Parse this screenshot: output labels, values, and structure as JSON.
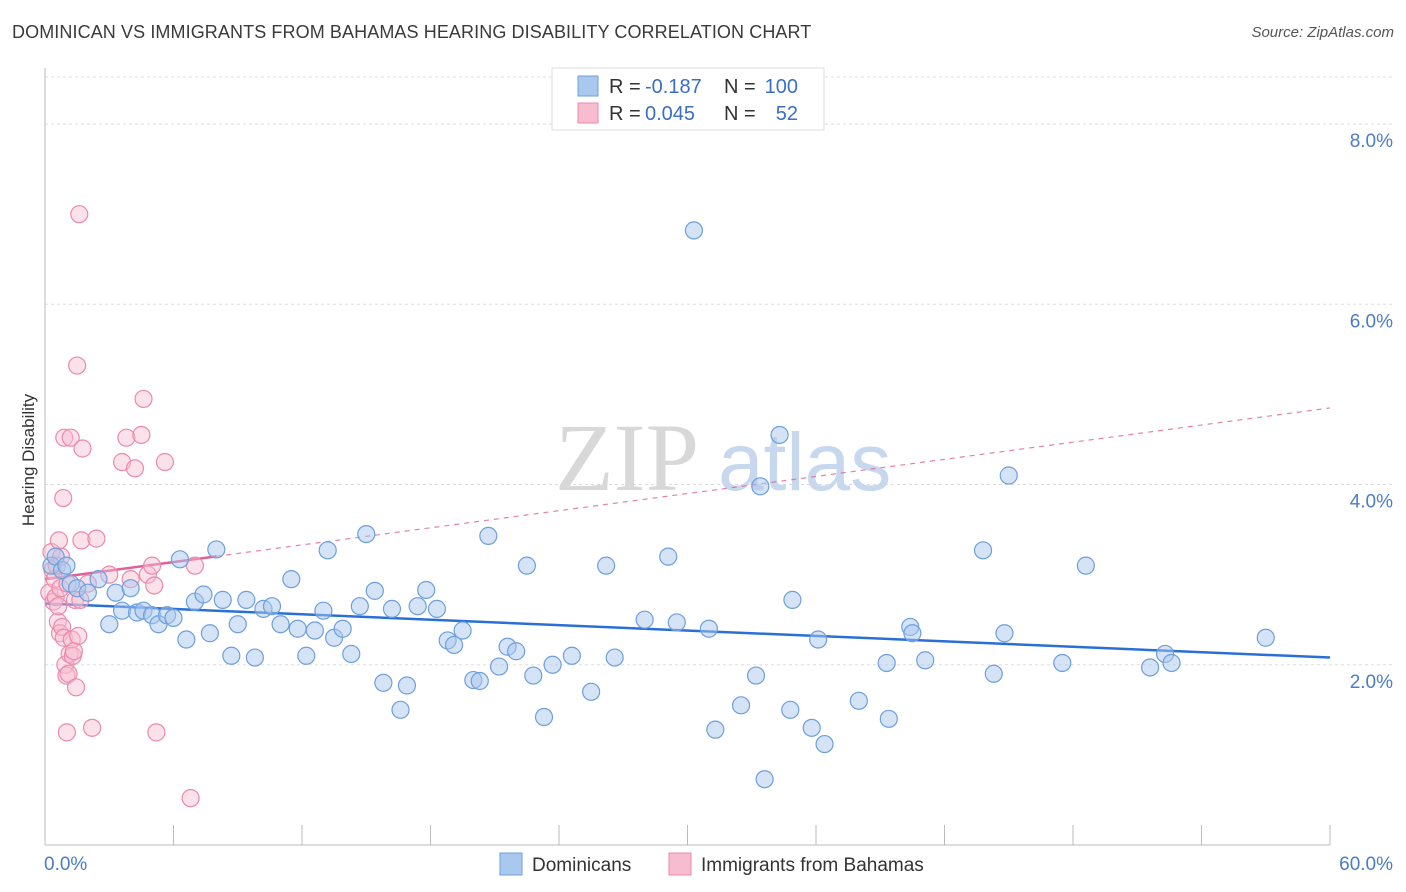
{
  "title": "DOMINICAN VS IMMIGRANTS FROM BAHAMAS HEARING DISABILITY CORRELATION CHART",
  "source": "Source: ZipAtlas.com",
  "watermark": {
    "zip": "ZIP",
    "atlas": "atlas"
  },
  "colors": {
    "blue_fill": "#a9c8ee",
    "blue_stroke": "#6e9fdc",
    "blue_line": "#2a6fd6",
    "pink_fill": "#f7bcd0",
    "pink_stroke": "#ec8aab",
    "pink_line": "#e0609a",
    "grid": "#dddddd",
    "axis_text": "#4a7cc7"
  },
  "chart_data": {
    "type": "scatter",
    "ylabel": "Hearing Disability",
    "xlim": [
      0,
      60
    ],
    "ylim": [
      0,
      8.6
    ],
    "x_tick_labels": {
      "min": "0.0%",
      "max": "60.0%"
    },
    "y_ticks": [
      {
        "value": 2,
        "label": "2.0%"
      },
      {
        "value": 4,
        "label": "4.0%"
      },
      {
        "value": 6,
        "label": "6.0%"
      },
      {
        "value": 8,
        "label": "8.0%"
      }
    ],
    "legend": [
      {
        "r_label": "R =",
        "r": "-0.187",
        "n_label": "N =",
        "n": "100"
      },
      {
        "r_label": "R =",
        "r": "0.045",
        "n_label": "N =",
        "n": "52"
      }
    ],
    "series": [
      {
        "name": "Dominicans",
        "trend": {
          "x0": 0,
          "y0": 2.68,
          "x1": 60,
          "y1": 2.08,
          "dashed_from": null
        },
        "points": [
          [
            0.3,
            3.1
          ],
          [
            0.5,
            3.2
          ],
          [
            0.8,
            3.05
          ],
          [
            1.0,
            3.1
          ],
          [
            1.2,
            2.9
          ],
          [
            1.5,
            2.85
          ],
          [
            2.0,
            2.8
          ],
          [
            2.5,
            2.95
          ],
          [
            3.0,
            2.45
          ],
          [
            3.3,
            2.8
          ],
          [
            3.6,
            2.6
          ],
          [
            4.0,
            2.85
          ],
          [
            4.3,
            2.58
          ],
          [
            4.6,
            2.6
          ],
          [
            5.0,
            2.55
          ],
          [
            5.3,
            2.45
          ],
          [
            5.7,
            2.55
          ],
          [
            6.0,
            2.52
          ],
          [
            6.3,
            3.17
          ],
          [
            6.6,
            2.28
          ],
          [
            7.0,
            2.7
          ],
          [
            7.4,
            2.78
          ],
          [
            7.7,
            2.35
          ],
          [
            8.0,
            3.28
          ],
          [
            8.3,
            2.72
          ],
          [
            8.7,
            2.1
          ],
          [
            9.0,
            2.45
          ],
          [
            9.4,
            2.72
          ],
          [
            9.8,
            2.08
          ],
          [
            10.2,
            2.62
          ],
          [
            10.6,
            2.65
          ],
          [
            11.0,
            2.45
          ],
          [
            11.5,
            2.95
          ],
          [
            11.8,
            2.4
          ],
          [
            12.2,
            2.1
          ],
          [
            12.6,
            2.38
          ],
          [
            13.0,
            2.6
          ],
          [
            13.2,
            3.27
          ],
          [
            13.5,
            2.3
          ],
          [
            13.9,
            2.4
          ],
          [
            14.3,
            2.12
          ],
          [
            14.7,
            2.65
          ],
          [
            15.0,
            3.45
          ],
          [
            15.4,
            2.82
          ],
          [
            15.8,
            1.8
          ],
          [
            16.2,
            2.62
          ],
          [
            16.6,
            1.5
          ],
          [
            16.9,
            1.77
          ],
          [
            17.4,
            2.65
          ],
          [
            17.8,
            2.83
          ],
          [
            18.3,
            2.62
          ],
          [
            18.8,
            2.27
          ],
          [
            19.1,
            2.22
          ],
          [
            19.5,
            2.38
          ],
          [
            20.0,
            1.83
          ],
          [
            20.3,
            1.82
          ],
          [
            20.7,
            3.43
          ],
          [
            21.2,
            1.98
          ],
          [
            21.6,
            2.2
          ],
          [
            22.0,
            2.15
          ],
          [
            22.5,
            3.1
          ],
          [
            22.8,
            1.88
          ],
          [
            23.3,
            1.42
          ],
          [
            23.7,
            2.0
          ],
          [
            24.6,
            2.1
          ],
          [
            25.5,
            1.7
          ],
          [
            26.2,
            3.1
          ],
          [
            26.6,
            2.08
          ],
          [
            28.0,
            2.5
          ],
          [
            29.1,
            3.2
          ],
          [
            29.5,
            2.47
          ],
          [
            30.3,
            6.82
          ],
          [
            31.0,
            2.4
          ],
          [
            31.3,
            1.28
          ],
          [
            32.5,
            1.55
          ],
          [
            33.2,
            1.88
          ],
          [
            33.6,
            0.73
          ],
          [
            33.4,
            3.98
          ],
          [
            34.3,
            4.55
          ],
          [
            34.8,
            1.5
          ],
          [
            34.9,
            2.72
          ],
          [
            35.8,
            1.3
          ],
          [
            36.1,
            2.28
          ],
          [
            36.4,
            1.12
          ],
          [
            38.0,
            1.6
          ],
          [
            39.3,
            2.02
          ],
          [
            39.4,
            1.4
          ],
          [
            40.4,
            2.42
          ],
          [
            40.5,
            2.35
          ],
          [
            41.1,
            2.05
          ],
          [
            43.8,
            3.27
          ],
          [
            44.3,
            1.9
          ],
          [
            44.8,
            2.35
          ],
          [
            45.0,
            4.1
          ],
          [
            47.5,
            2.02
          ],
          [
            48.6,
            3.1
          ],
          [
            51.6,
            1.97
          ],
          [
            52.3,
            2.12
          ],
          [
            52.6,
            2.02
          ],
          [
            57.0,
            2.3
          ]
        ]
      },
      {
        "name": "Immigrants from Bahamas",
        "trend": {
          "x0": 0,
          "y0": 2.95,
          "x1": 60,
          "y1": 4.85,
          "solid_until": 8.0
        },
        "points": [
          [
            0.2,
            2.8
          ],
          [
            0.3,
            3.25
          ],
          [
            0.35,
            3.05
          ],
          [
            0.4,
            2.7
          ],
          [
            0.45,
            2.95
          ],
          [
            0.5,
            2.75
          ],
          [
            0.55,
            3.1
          ],
          [
            0.6,
            2.48
          ],
          [
            0.62,
            2.65
          ],
          [
            0.65,
            3.38
          ],
          [
            0.7,
            2.35
          ],
          [
            0.72,
            2.85
          ],
          [
            0.75,
            3.2
          ],
          [
            0.8,
            2.42
          ],
          [
            0.85,
            3.85
          ],
          [
            0.88,
            2.3
          ],
          [
            0.9,
            4.52
          ],
          [
            0.95,
            2.0
          ],
          [
            1.0,
            1.88
          ],
          [
            1.02,
            1.25
          ],
          [
            1.05,
            2.9
          ],
          [
            1.1,
            1.9
          ],
          [
            1.15,
            2.12
          ],
          [
            1.2,
            4.52
          ],
          [
            1.25,
            2.28
          ],
          [
            1.3,
            2.1
          ],
          [
            1.35,
            2.15
          ],
          [
            1.4,
            2.72
          ],
          [
            1.45,
            1.75
          ],
          [
            1.5,
            5.32
          ],
          [
            1.55,
            2.32
          ],
          [
            1.6,
            7.0
          ],
          [
            1.65,
            2.72
          ],
          [
            1.7,
            3.38
          ],
          [
            1.75,
            4.4
          ],
          [
            2.0,
            2.9
          ],
          [
            2.2,
            1.3
          ],
          [
            2.4,
            3.4
          ],
          [
            3.0,
            3.0
          ],
          [
            3.6,
            4.25
          ],
          [
            3.8,
            4.52
          ],
          [
            4.0,
            2.95
          ],
          [
            4.2,
            4.18
          ],
          [
            4.5,
            4.55
          ],
          [
            4.6,
            4.95
          ],
          [
            4.8,
            3.0
          ],
          [
            5.0,
            3.1
          ],
          [
            5.1,
            2.88
          ],
          [
            5.2,
            1.25
          ],
          [
            5.6,
            4.25
          ],
          [
            6.8,
            0.52
          ],
          [
            7.0,
            3.1
          ]
        ]
      }
    ],
    "bottom_legend": [
      "Dominicans",
      "Immigrants from Bahamas"
    ]
  }
}
